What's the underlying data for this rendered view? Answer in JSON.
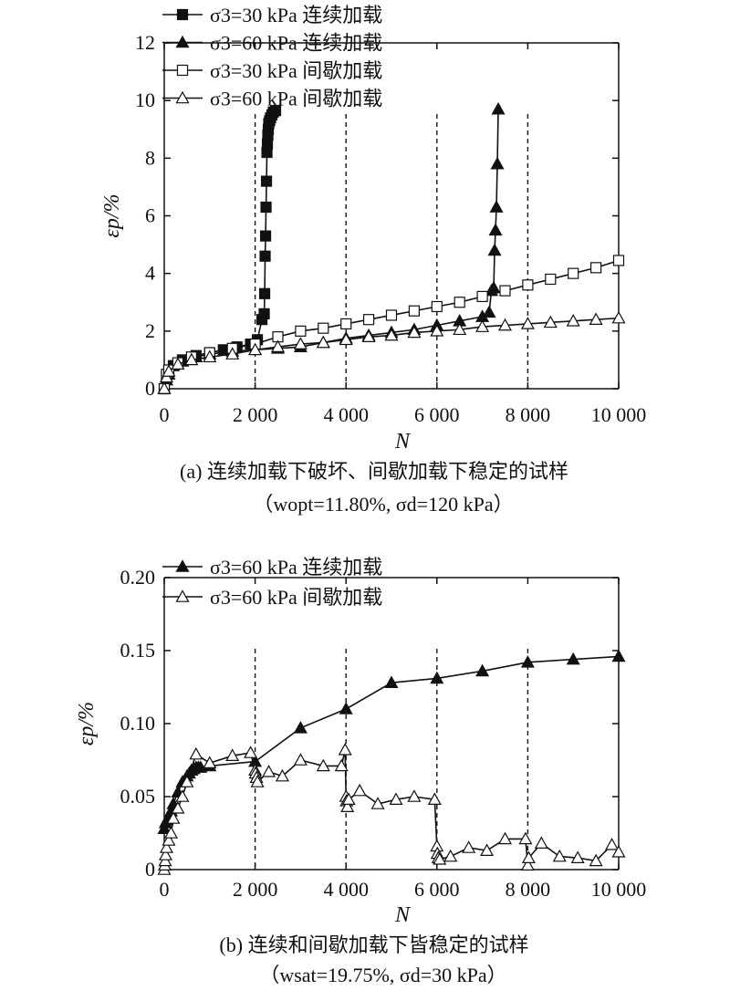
{
  "chart_data": [
    {
      "type": "line",
      "panel": "a",
      "xlabel": "N",
      "ylabel": "εp/%",
      "xlim": [
        0,
        10000
      ],
      "ylim": [
        0,
        12
      ],
      "xticks": [
        0,
        2000,
        4000,
        6000,
        8000,
        10000
      ],
      "xtick_labels": [
        "0",
        "2 000",
        "4 000",
        "6 000",
        "8 000",
        "10 000"
      ],
      "yticks": [
        0,
        2,
        4,
        6,
        8,
        10,
        12
      ],
      "ytick_labels": [
        "0",
        "2",
        "4",
        "6",
        "8",
        "10",
        "12"
      ],
      "vlines": [
        2000,
        4000,
        6000,
        8000
      ],
      "legend_position": "top-left",
      "grid": false,
      "caption": "(a) 连续加载下破坏、间歇加载下稳定的试样",
      "caption2": "（wopt=11.80%, σd=120 kPa）",
      "series": [
        {
          "name": "σ3=30 kPa 连续加载",
          "marker": "square-filled",
          "x": [
            0,
            50,
            100,
            200,
            400,
            700,
            1000,
            1300,
            1600,
            1900,
            2050,
            2150,
            2200,
            2210,
            2220,
            2230,
            2240,
            2250,
            2260,
            2270,
            2280,
            2290,
            2300,
            2320,
            2340,
            2370,
            2400,
            2450
          ],
          "y": [
            0,
            0.4,
            0.6,
            0.8,
            1.0,
            1.15,
            1.25,
            1.35,
            1.45,
            1.55,
            1.7,
            2.4,
            2.6,
            3.3,
            4.6,
            5.3,
            6.3,
            7.2,
            8.2,
            8.5,
            8.8,
            9.0,
            9.2,
            9.3,
            9.4,
            9.5,
            9.6,
            9.65
          ]
        },
        {
          "name": "σ3=60 kPa 连续加载",
          "marker": "triangle-filled",
          "x": [
            0,
            50,
            100,
            200,
            400,
            700,
            1000,
            1500,
            2000,
            2500,
            3000,
            3500,
            4000,
            4500,
            5000,
            5500,
            6000,
            6500,
            7000,
            7150,
            7200,
            7250,
            7270,
            7290,
            7310,
            7330,
            7350
          ],
          "y": [
            0,
            0.3,
            0.5,
            0.8,
            0.95,
            1.1,
            1.2,
            1.3,
            1.35,
            1.4,
            1.45,
            1.6,
            1.75,
            1.85,
            1.95,
            2.05,
            2.2,
            2.35,
            2.5,
            2.65,
            3.4,
            3.5,
            4.8,
            5.5,
            6.3,
            7.8,
            9.7
          ]
        },
        {
          "name": "σ3=30 kPa 间歇加载",
          "marker": "square-open",
          "x": [
            0,
            50,
            100,
            300,
            600,
            1000,
            1500,
            2000,
            2500,
            3000,
            3500,
            4000,
            4500,
            5000,
            5500,
            6000,
            6500,
            7000,
            7500,
            8000,
            8500,
            9000,
            9500,
            10000
          ],
          "y": [
            0,
            0.5,
            0.65,
            0.9,
            1.1,
            1.25,
            1.4,
            1.55,
            1.8,
            2.0,
            2.1,
            2.25,
            2.4,
            2.55,
            2.7,
            2.85,
            3.0,
            3.2,
            3.4,
            3.6,
            3.8,
            4.0,
            4.2,
            4.45
          ]
        },
        {
          "name": "σ3=60 kPa 间歇加载",
          "marker": "triangle-open",
          "x": [
            0,
            50,
            100,
            300,
            600,
            1000,
            1500,
            2000,
            2500,
            3000,
            3500,
            4000,
            4500,
            5000,
            5500,
            6000,
            6500,
            7000,
            7500,
            8000,
            8500,
            9000,
            9500,
            10000
          ],
          "y": [
            0,
            0.4,
            0.6,
            0.85,
            1.0,
            1.1,
            1.2,
            1.35,
            1.45,
            1.55,
            1.6,
            1.7,
            1.8,
            1.85,
            1.95,
            2.0,
            2.05,
            2.15,
            2.2,
            2.25,
            2.3,
            2.35,
            2.4,
            2.45
          ]
        }
      ]
    },
    {
      "type": "line",
      "panel": "b",
      "xlabel": "N",
      "ylabel": "εp/%",
      "xlim": [
        0,
        10000
      ],
      "ylim": [
        0,
        0.2
      ],
      "xticks": [
        0,
        2000,
        4000,
        6000,
        8000,
        10000
      ],
      "xtick_labels": [
        "0",
        "2 000",
        "4 000",
        "6 000",
        "8 000",
        "10 000"
      ],
      "yticks": [
        0,
        0.05,
        0.1,
        0.15,
        0.2
      ],
      "ytick_labels": [
        "0",
        "0.05",
        "0.10",
        "0.15",
        "0.20"
      ],
      "vlines": [
        2000,
        4000,
        6000,
        8000
      ],
      "legend_position": "top-left",
      "grid": false,
      "caption": "(b) 连续和间歇加载下皆稳定的试样",
      "caption2": "（wsat=19.75%, σd=30 kPa）",
      "series": [
        {
          "name": "σ3=60 kPa 连续加载",
          "marker": "triangle-filled",
          "x": [
            0,
            30,
            60,
            100,
            150,
            200,
            300,
            400,
            500,
            550,
            600,
            650,
            700,
            750,
            800,
            1000,
            2000,
            3000,
            4000,
            5000,
            6000,
            7000,
            8000,
            9000,
            10000
          ],
          "y": [
            0.028,
            0.032,
            0.034,
            0.036,
            0.04,
            0.045,
            0.053,
            0.06,
            0.064,
            0.066,
            0.068,
            0.069,
            0.07,
            0.07,
            0.07,
            0.071,
            0.074,
            0.097,
            0.11,
            0.128,
            0.131,
            0.136,
            0.142,
            0.144,
            0.146
          ]
        },
        {
          "name": "σ3=60 kPa 间歇加载",
          "marker": "triangle-open",
          "x": [
            0,
            10,
            20,
            30,
            50,
            100,
            150,
            200,
            300,
            400,
            500,
            700,
            1000,
            1500,
            1900,
            2000,
            2010,
            2030,
            2050,
            2300,
            2600,
            3000,
            3500,
            3900,
            3980,
            4000,
            4010,
            4030,
            4060,
            4300,
            4700,
            5100,
            5500,
            5950,
            6000,
            6010,
            6030,
            6060,
            6300,
            6700,
            7100,
            7500,
            7950,
            8000,
            8020,
            8300,
            8700,
            9100,
            9500,
            9850,
            10000
          ],
          "y": [
            0.0,
            0.003,
            0.006,
            0.01,
            0.015,
            0.02,
            0.025,
            0.035,
            0.042,
            0.05,
            0.06,
            0.079,
            0.073,
            0.078,
            0.08,
            0.068,
            0.066,
            0.063,
            0.06,
            0.067,
            0.064,
            0.075,
            0.071,
            0.071,
            0.082,
            0.05,
            0.047,
            0.043,
            0.048,
            0.054,
            0.045,
            0.048,
            0.05,
            0.048,
            0.016,
            0.011,
            0.008,
            0.007,
            0.009,
            0.015,
            0.013,
            0.021,
            0.021,
            0.003,
            0.008,
            0.018,
            0.009,
            0.008,
            0.006,
            0.017,
            0.012
          ]
        }
      ]
    }
  ]
}
